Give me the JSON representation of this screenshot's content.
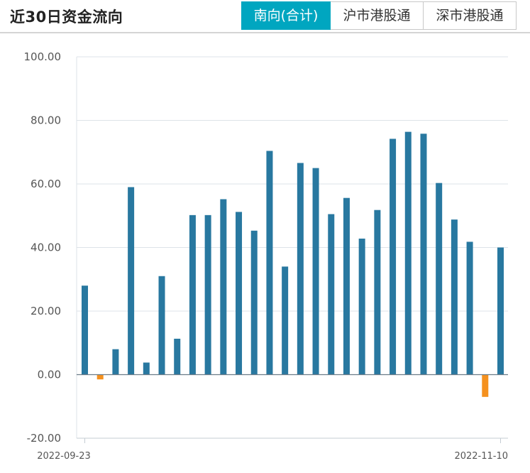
{
  "header": {
    "title": "近30日资金流向",
    "tabs": [
      {
        "label": "南向(合计)",
        "active": true
      },
      {
        "label": "沪市港股通",
        "active": false
      },
      {
        "label": "深市港股通",
        "active": false
      }
    ]
  },
  "chart_data": {
    "type": "bar",
    "title": "",
    "xlabel": "",
    "ylabel": "",
    "ylim": [
      -20,
      100
    ],
    "yticks": [
      "100.00",
      "80.00",
      "60.00",
      "40.00",
      "20.00",
      "0.00",
      "-20.00"
    ],
    "x_tick_labels": [
      "2022-09-23",
      "2022-11-10"
    ],
    "grid": true,
    "colors": {
      "positive": "#2878a0",
      "negative": "#f5911e"
    },
    "values": [
      28.0,
      -1.5,
      8.0,
      59.0,
      3.8,
      31.0,
      11.3,
      50.2,
      50.2,
      55.2,
      51.2,
      45.3,
      70.4,
      34.0,
      66.6,
      65.0,
      50.5,
      55.6,
      42.8,
      51.8,
      74.2,
      76.4,
      75.8,
      60.3,
      48.8,
      41.8,
      -7.0,
      40.0
    ]
  }
}
